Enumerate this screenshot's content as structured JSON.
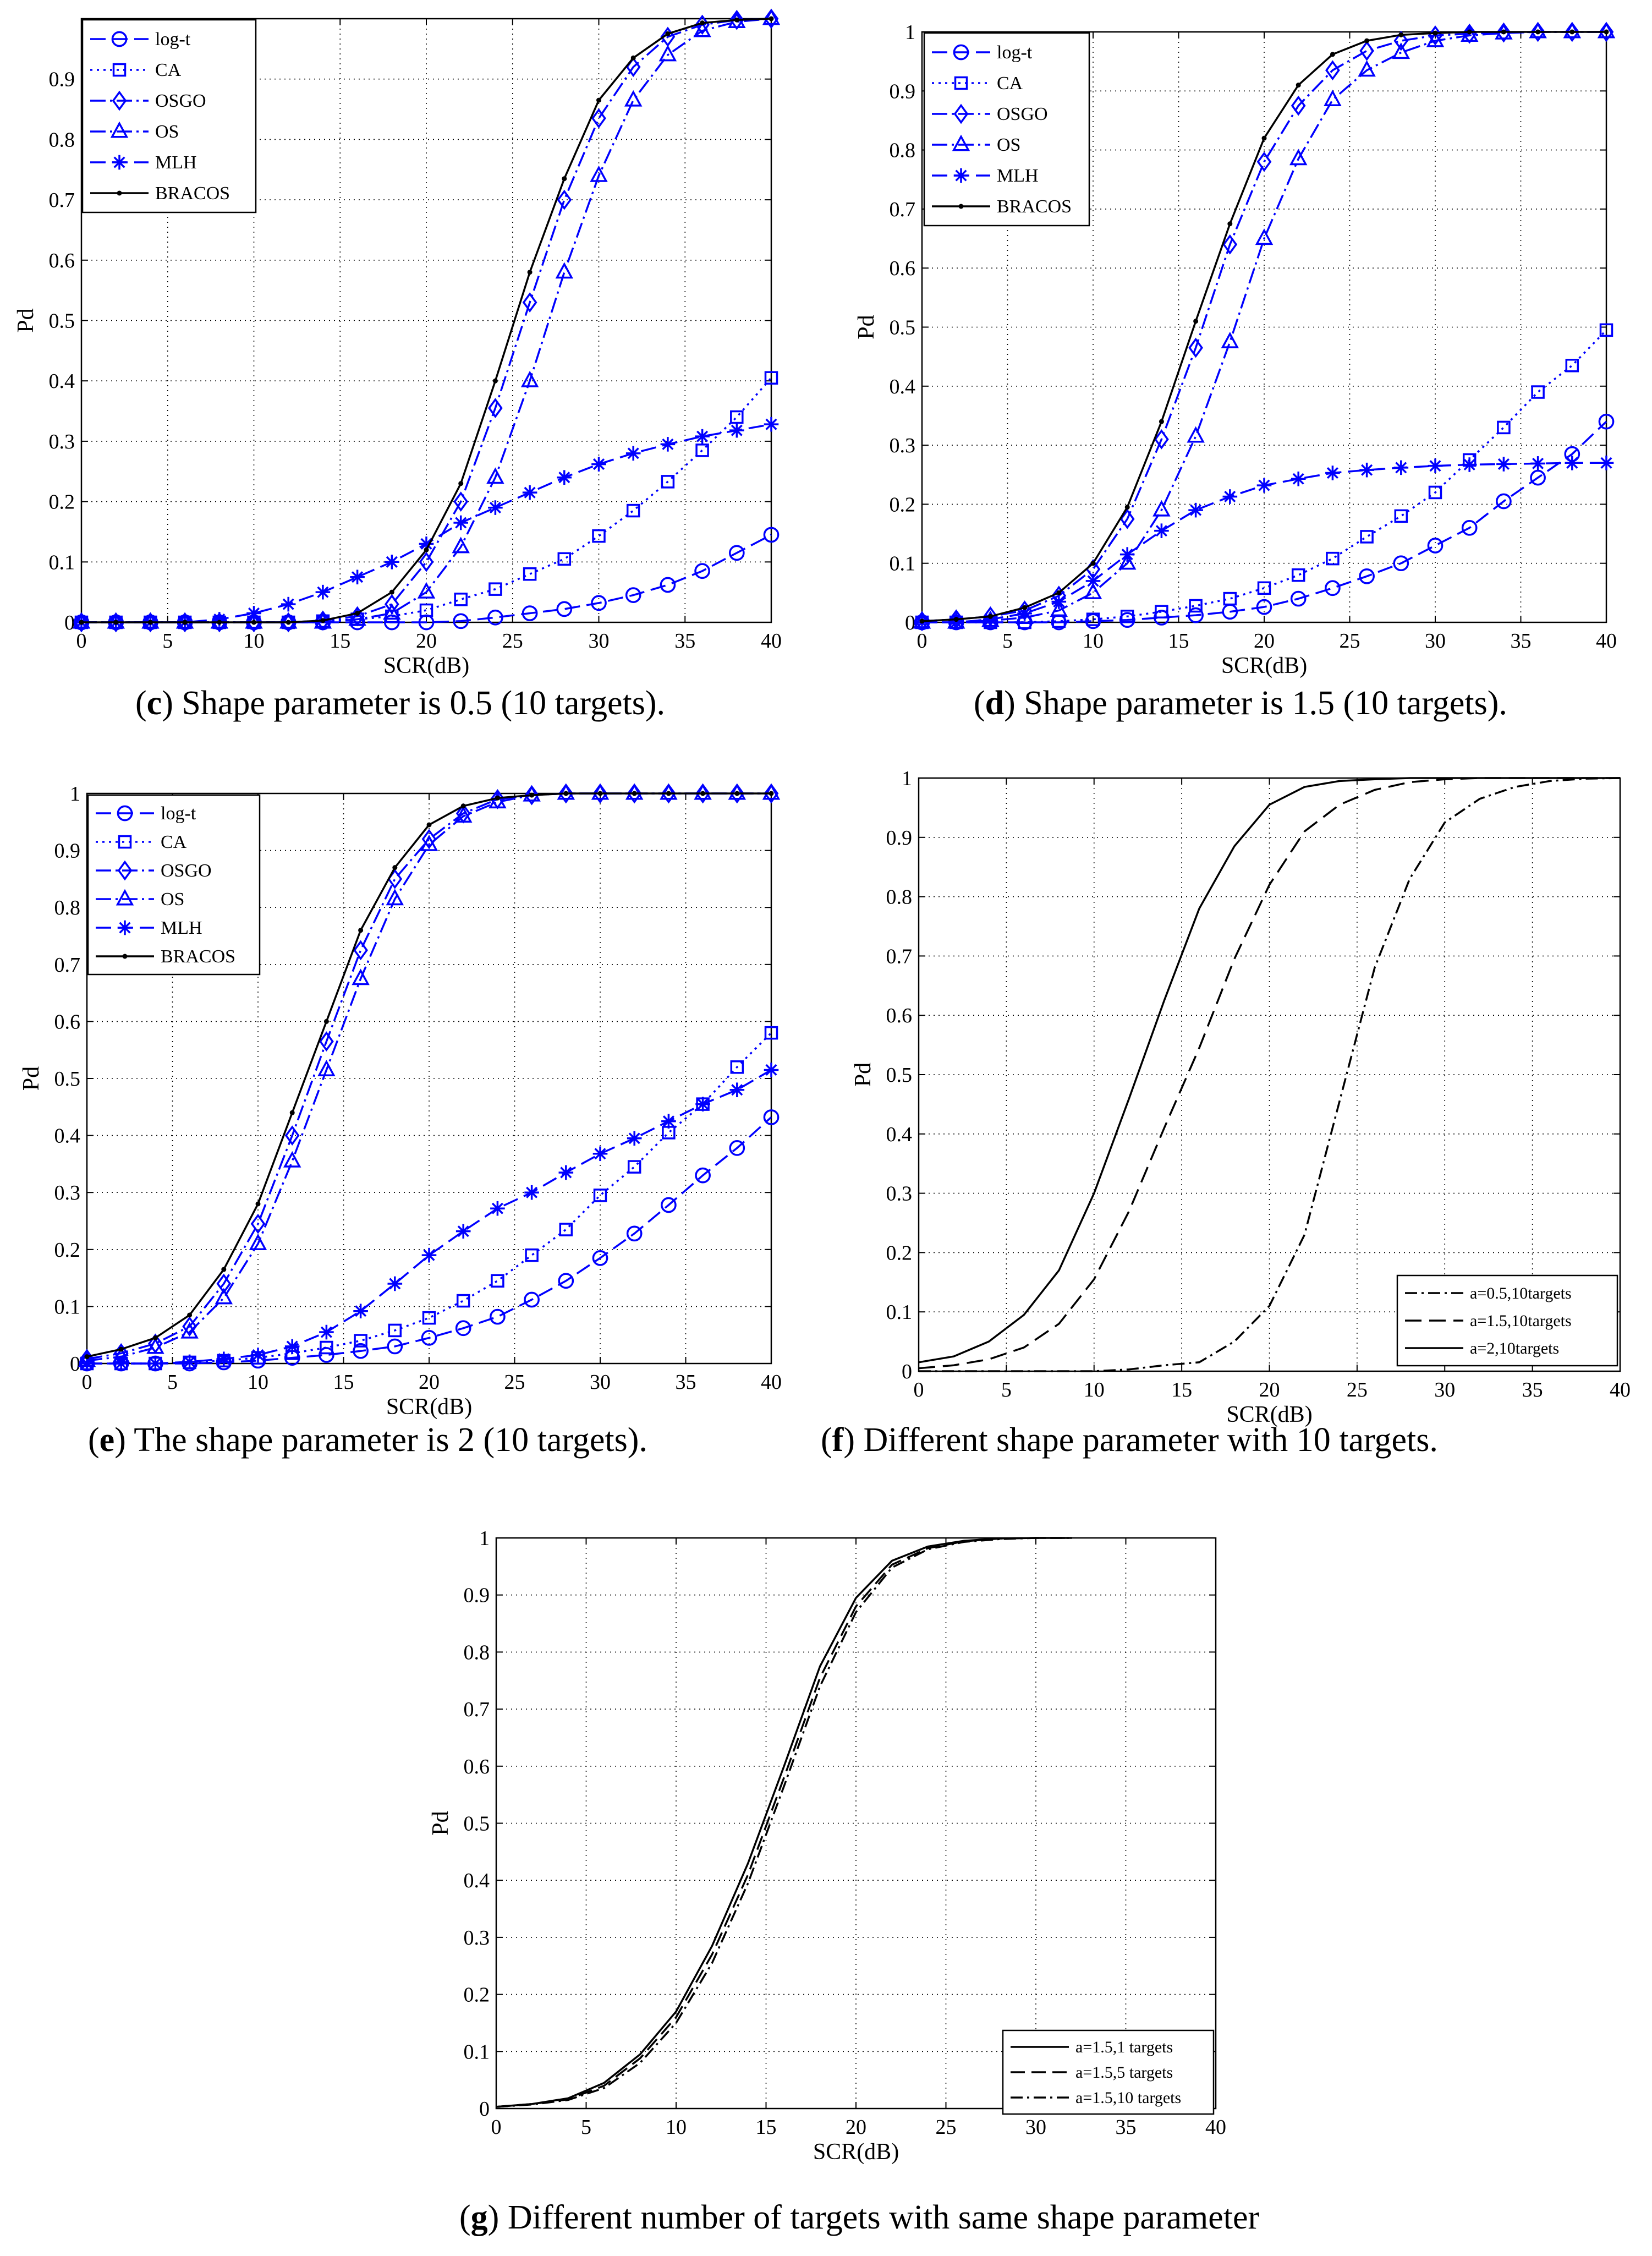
{
  "chart_data": [
    {
      "id": "c",
      "type": "line",
      "caption_letter": "c",
      "caption_text": "Shape parameter is 0.5 (10 targets).",
      "xlabel": "SCR(dB)",
      "ylabel": "Pd",
      "xlim": [
        0,
        40
      ],
      "ylim": [
        0,
        1
      ],
      "xticks": [
        0,
        5,
        10,
        15,
        20,
        25,
        30,
        35,
        40
      ],
      "yticks": [
        0,
        0.1,
        0.2,
        0.3,
        0.4,
        0.5,
        0.6,
        0.7,
        0.8,
        0.9
      ],
      "legend_position": "top-left",
      "x": [
        0,
        2,
        4,
        6,
        8,
        10,
        12,
        14,
        16,
        18,
        20,
        22,
        24,
        26,
        28,
        30,
        32,
        34,
        36,
        38,
        40
      ],
      "series": [
        {
          "name": "log-t",
          "marker": "circle",
          "color": "#0000ff",
          "dash": "28 12",
          "values": [
            0,
            0,
            0,
            0,
            0,
            0,
            0,
            0,
            0,
            0,
            0,
            0.002,
            0.008,
            0.015,
            0.022,
            0.032,
            0.045,
            0.062,
            0.085,
            0.115,
            0.145
          ]
        },
        {
          "name": "CA",
          "marker": "square",
          "color": "#0000ff",
          "dash": "4 8",
          "values": [
            0,
            0,
            0,
            0,
            0,
            0,
            0,
            0.002,
            0.005,
            0.01,
            0.02,
            0.038,
            0.055,
            0.08,
            0.105,
            0.143,
            0.185,
            0.233,
            0.285,
            0.34,
            0.405
          ]
        },
        {
          "name": "OSGO",
          "marker": "diamond",
          "color": "#0000ff",
          "dash": "28 8 4 8",
          "values": [
            0,
            0,
            0,
            0,
            0,
            0,
            0,
            0.003,
            0.01,
            0.03,
            0.1,
            0.2,
            0.355,
            0.53,
            0.7,
            0.835,
            0.92,
            0.97,
            0.99,
            0.998,
            1.0
          ]
        },
        {
          "name": "OS",
          "marker": "triangle",
          "color": "#0000ff",
          "dash": "28 8 4 8",
          "values": [
            0,
            0,
            0,
            0,
            0,
            0,
            0,
            0,
            0.005,
            0.015,
            0.05,
            0.125,
            0.24,
            0.4,
            0.58,
            0.74,
            0.865,
            0.94,
            0.98,
            0.995,
            1.0
          ]
        },
        {
          "name": "MLH",
          "marker": "star",
          "color": "#0000ff",
          "dash": "28 12",
          "values": [
            0,
            0,
            0,
            0,
            0.005,
            0.015,
            0.03,
            0.05,
            0.075,
            0.1,
            0.13,
            0.165,
            0.19,
            0.215,
            0.24,
            0.262,
            0.28,
            0.295,
            0.308,
            0.318,
            0.328
          ]
        },
        {
          "name": "BRACOS",
          "marker": "dot",
          "color": "#000000",
          "dash": "",
          "values": [
            0,
            0,
            0,
            0,
            0,
            0,
            0,
            0.003,
            0.015,
            0.05,
            0.12,
            0.23,
            0.4,
            0.58,
            0.735,
            0.865,
            0.935,
            0.975,
            0.993,
            0.998,
            1.0
          ]
        }
      ]
    },
    {
      "id": "d",
      "type": "line",
      "caption_letter": "d",
      "caption_text": "Shape parameter is 1.5 (10 targets).",
      "xlabel": "SCR(dB)",
      "ylabel": "Pd",
      "xlim": [
        0,
        40
      ],
      "ylim": [
        0,
        1
      ],
      "xticks": [
        0,
        5,
        10,
        15,
        20,
        25,
        30,
        35,
        40
      ],
      "yticks": [
        0,
        0.1,
        0.2,
        0.3,
        0.4,
        0.5,
        0.6,
        0.7,
        0.8,
        0.9,
        1
      ],
      "legend_position": "top-left",
      "x": [
        0,
        2,
        4,
        6,
        8,
        10,
        12,
        14,
        16,
        18,
        20,
        22,
        24,
        26,
        28,
        30,
        32,
        34,
        36,
        38,
        40
      ],
      "series": [
        {
          "name": "log-t",
          "marker": "circle",
          "color": "#0000ff",
          "dash": "28 12",
          "values": [
            0,
            0,
            0,
            0,
            0,
            0.002,
            0.004,
            0.008,
            0.012,
            0.018,
            0.026,
            0.04,
            0.058,
            0.078,
            0.1,
            0.13,
            0.16,
            0.205,
            0.245,
            0.285,
            0.34
          ]
        },
        {
          "name": "CA",
          "marker": "square",
          "color": "#0000ff",
          "dash": "4 8",
          "values": [
            0,
            0,
            0,
            0,
            0.002,
            0.005,
            0.01,
            0.018,
            0.028,
            0.04,
            0.058,
            0.08,
            0.108,
            0.145,
            0.18,
            0.22,
            0.275,
            0.33,
            0.39,
            0.435,
            0.495
          ]
        },
        {
          "name": "OSGO",
          "marker": "diamond",
          "color": "#0000ff",
          "dash": "28 8 4 8",
          "values": [
            0.002,
            0.005,
            0.01,
            0.02,
            0.045,
            0.09,
            0.175,
            0.31,
            0.465,
            0.64,
            0.78,
            0.875,
            0.935,
            0.968,
            0.985,
            0.994,
            0.997,
            0.999,
            1.0,
            1.0,
            1.0
          ]
        },
        {
          "name": "OS",
          "marker": "triangle",
          "color": "#0000ff",
          "dash": "28 8 4 8",
          "values": [
            0,
            0,
            0.003,
            0.008,
            0.02,
            0.05,
            0.1,
            0.19,
            0.315,
            0.475,
            0.65,
            0.785,
            0.885,
            0.935,
            0.965,
            0.985,
            0.994,
            0.998,
            1.0,
            1.0,
            1.0
          ]
        },
        {
          "name": "MLH",
          "marker": "star",
          "color": "#0000ff",
          "dash": "28 12",
          "values": [
            0,
            0,
            0.005,
            0.015,
            0.035,
            0.07,
            0.115,
            0.155,
            0.19,
            0.213,
            0.232,
            0.243,
            0.253,
            0.258,
            0.262,
            0.265,
            0.267,
            0.268,
            0.269,
            0.27,
            0.27
          ]
        },
        {
          "name": "BRACOS",
          "marker": "dot",
          "color": "#000000",
          "dash": "",
          "values": [
            0.002,
            0.005,
            0.01,
            0.025,
            0.05,
            0.1,
            0.195,
            0.34,
            0.51,
            0.675,
            0.82,
            0.91,
            0.962,
            0.985,
            0.995,
            0.998,
            1.0,
            1.0,
            1.0,
            1.0,
            1.0
          ]
        }
      ]
    },
    {
      "id": "e",
      "type": "line",
      "caption_letter": "e",
      "caption_text": "The shape parameter is 2 (10 targets).",
      "xlabel": "SCR(dB)",
      "ylabel": "Pd",
      "xlim": [
        0,
        40
      ],
      "ylim": [
        0,
        1
      ],
      "xticks": [
        0,
        5,
        10,
        15,
        20,
        25,
        30,
        35,
        40
      ],
      "yticks": [
        0,
        0.1,
        0.2,
        0.3,
        0.4,
        0.5,
        0.6,
        0.7,
        0.8,
        0.9,
        1
      ],
      "legend_position": "top-left",
      "x": [
        0,
        2,
        4,
        6,
        8,
        10,
        12,
        14,
        16,
        18,
        20,
        22,
        24,
        26,
        28,
        30,
        32,
        34,
        36,
        38,
        40
      ],
      "series": [
        {
          "name": "log-t",
          "marker": "circle",
          "color": "#0000ff",
          "dash": "28 12",
          "values": [
            0,
            0,
            0,
            0,
            0.002,
            0.005,
            0.01,
            0.015,
            0.022,
            0.03,
            0.045,
            0.062,
            0.082,
            0.112,
            0.145,
            0.185,
            0.228,
            0.278,
            0.33,
            0.378,
            0.432
          ]
        },
        {
          "name": "CA",
          "marker": "square",
          "color": "#0000ff",
          "dash": "4 8",
          "values": [
            0,
            0,
            0,
            0.002,
            0.005,
            0.01,
            0.018,
            0.028,
            0.04,
            0.058,
            0.08,
            0.11,
            0.145,
            0.19,
            0.235,
            0.295,
            0.345,
            0.405,
            0.455,
            0.52,
            0.58
          ]
        },
        {
          "name": "OSGO",
          "marker": "diamond",
          "color": "#0000ff",
          "dash": "28 8 4 8",
          "values": [
            0.008,
            0.018,
            0.035,
            0.065,
            0.14,
            0.245,
            0.4,
            0.565,
            0.725,
            0.85,
            0.92,
            0.965,
            0.99,
            0.997,
            1.0,
            1.0,
            1.0,
            1.0,
            1.0,
            1.0,
            1.0
          ]
        },
        {
          "name": "OS",
          "marker": "triangle",
          "color": "#0000ff",
          "dash": "28 8 4 8",
          "values": [
            0.005,
            0.012,
            0.028,
            0.055,
            0.115,
            0.21,
            0.355,
            0.515,
            0.675,
            0.815,
            0.91,
            0.96,
            0.985,
            0.997,
            1.0,
            1.0,
            1.0,
            1.0,
            1.0,
            1.0,
            1.0
          ]
        },
        {
          "name": "MLH",
          "marker": "star",
          "color": "#0000ff",
          "dash": "28 12",
          "values": [
            0,
            0,
            0,
            0.003,
            0.008,
            0.015,
            0.03,
            0.055,
            0.092,
            0.14,
            0.19,
            0.232,
            0.272,
            0.3,
            0.335,
            0.368,
            0.395,
            0.425,
            0.455,
            0.48,
            0.515
          ]
        },
        {
          "name": "BRACOS",
          "marker": "dot",
          "color": "#000000",
          "dash": "",
          "values": [
            0.012,
            0.025,
            0.045,
            0.085,
            0.165,
            0.28,
            0.44,
            0.6,
            0.76,
            0.87,
            0.945,
            0.978,
            0.992,
            0.997,
            1.0,
            1.0,
            1.0,
            1.0,
            1.0,
            1.0,
            1.0
          ]
        }
      ]
    },
    {
      "id": "f",
      "type": "line",
      "caption_letter": "f",
      "caption_text": "Different shape parameter with 10 targets.",
      "xlabel": "SCR(dB)",
      "ylabel": "Pd",
      "xlim": [
        0,
        40
      ],
      "ylim": [
        0,
        1
      ],
      "xticks": [
        0,
        5,
        10,
        15,
        20,
        25,
        30,
        35,
        40
      ],
      "yticks": [
        0,
        0.1,
        0.2,
        0.3,
        0.4,
        0.5,
        0.6,
        0.7,
        0.8,
        0.9,
        1
      ],
      "legend_position": "bottom-right",
      "x": [
        0,
        2,
        4,
        6,
        8,
        10,
        12,
        14,
        16,
        18,
        20,
        22,
        24,
        26,
        28,
        30,
        32,
        34,
        36,
        38,
        40
      ],
      "series": [
        {
          "name": "a=0.5,10targets",
          "marker": "none",
          "color": "#000000",
          "dash": "22 8 4 8",
          "values": [
            0,
            0,
            0,
            0,
            0,
            0,
            0.003,
            0.01,
            0.015,
            0.05,
            0.11,
            0.23,
            0.455,
            0.68,
            0.83,
            0.925,
            0.965,
            0.985,
            0.995,
            0.999,
            1.0
          ]
        },
        {
          "name": "a=1.5,10targets",
          "marker": "none",
          "color": "#000000",
          "dash": "30 14",
          "values": [
            0.005,
            0.01,
            0.02,
            0.04,
            0.08,
            0.155,
            0.27,
            0.41,
            0.545,
            0.695,
            0.82,
            0.91,
            0.955,
            0.98,
            0.993,
            0.998,
            1.0,
            1.0,
            1.0,
            1.0,
            1.0
          ]
        },
        {
          "name": "a=2,10targets",
          "marker": "none",
          "color": "#000000",
          "dash": "",
          "values": [
            0.015,
            0.025,
            0.05,
            0.095,
            0.17,
            0.3,
            0.46,
            0.625,
            0.78,
            0.885,
            0.955,
            0.985,
            0.995,
            0.998,
            1.0,
            1.0,
            1.0,
            1.0,
            1.0,
            1.0,
            1.0
          ]
        }
      ]
    },
    {
      "id": "g",
      "type": "line",
      "caption_letter": "g",
      "caption_text": "Different number of targets with same shape parameter",
      "xlabel": "SCR(dB)",
      "ylabel": "Pd",
      "xlim": [
        0,
        40
      ],
      "ylim": [
        0,
        1
      ],
      "xticks": [
        0,
        5,
        10,
        15,
        20,
        25,
        30,
        35,
        40
      ],
      "yticks": [
        0,
        0.1,
        0.2,
        0.3,
        0.4,
        0.5,
        0.6,
        0.7,
        0.8,
        0.9,
        1
      ],
      "legend_position": "bottom-right",
      "x": [
        0,
        2,
        4,
        6,
        8,
        10,
        12,
        14,
        16,
        18,
        20,
        22,
        24,
        26,
        28,
        30,
        32
      ],
      "series": [
        {
          "name": "a=1.5,1 targets",
          "marker": "none",
          "color": "#000000",
          "dash": "",
          "values": [
            0.003,
            0.008,
            0.018,
            0.045,
            0.095,
            0.17,
            0.285,
            0.43,
            0.6,
            0.775,
            0.895,
            0.96,
            0.985,
            0.995,
            0.999,
            1.0,
            1.0
          ]
        },
        {
          "name": "a=1.5,5 targets",
          "marker": "none",
          "color": "#000000",
          "dash": "26 12",
          "values": [
            0.003,
            0.008,
            0.016,
            0.04,
            0.088,
            0.16,
            0.27,
            0.41,
            0.58,
            0.755,
            0.88,
            0.953,
            0.982,
            0.994,
            0.999,
            1.0,
            1.0
          ]
        },
        {
          "name": "a=1.5,10 targets",
          "marker": "none",
          "color": "#000000",
          "dash": "22 8 4 8",
          "values": [
            0.003,
            0.007,
            0.015,
            0.036,
            0.08,
            0.15,
            0.255,
            0.395,
            0.565,
            0.74,
            0.87,
            0.948,
            0.98,
            0.993,
            0.998,
            1.0,
            1.0
          ]
        }
      ]
    }
  ]
}
